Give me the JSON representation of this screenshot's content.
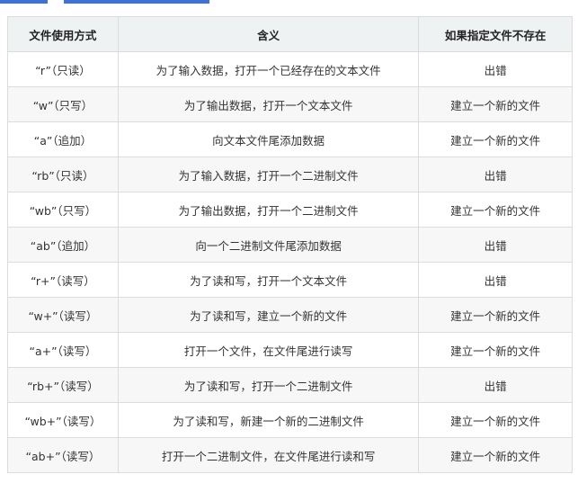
{
  "accent": "#3f72d6",
  "table": {
    "headers": [
      "文件使用方式",
      "含义",
      "如果指定文件不存在"
    ],
    "rows": [
      [
        "“r”（只读）",
        "为了输入数据，打开一个已经存在的文本文件",
        "出错"
      ],
      [
        "“w”（只写）",
        "为了输出数据，打开一个文本文件",
        "建立一个新的文件"
      ],
      [
        "“a”（追加）",
        "向文本文件尾添加数据",
        "建立一个新的文件"
      ],
      [
        "“rb”（只读）",
        "为了输入数据，打开一个二进制文件",
        "出错"
      ],
      [
        "“wb”（只写）",
        "为了输出数据，打开一个二进制文件",
        "建立一个新的文件"
      ],
      [
        "“ab”（追加）",
        "向一个二进制文件尾添加数据",
        "出错"
      ],
      [
        "“r+”（读写）",
        "为了读和写，打开一个文本文件",
        "出错"
      ],
      [
        "“w+”（读写）",
        "为了读和写，建立一个新的文件",
        "建立一个新的文件"
      ],
      [
        "“a+”（读写）",
        "打开一个文件，在文件尾进行读写",
        "建立一个新的文件"
      ],
      [
        "“rb+”（读写）",
        "为了读和写，打开一个二进制文件",
        "出错"
      ],
      [
        "“wb+”（读写）",
        "为了读和写，新建一个新的二进制文件",
        "建立一个新的文件"
      ],
      [
        "“ab+”（读写）",
        "打开一个二进制文件，在文件尾进行读和写",
        "建立一个新的文件"
      ]
    ]
  }
}
